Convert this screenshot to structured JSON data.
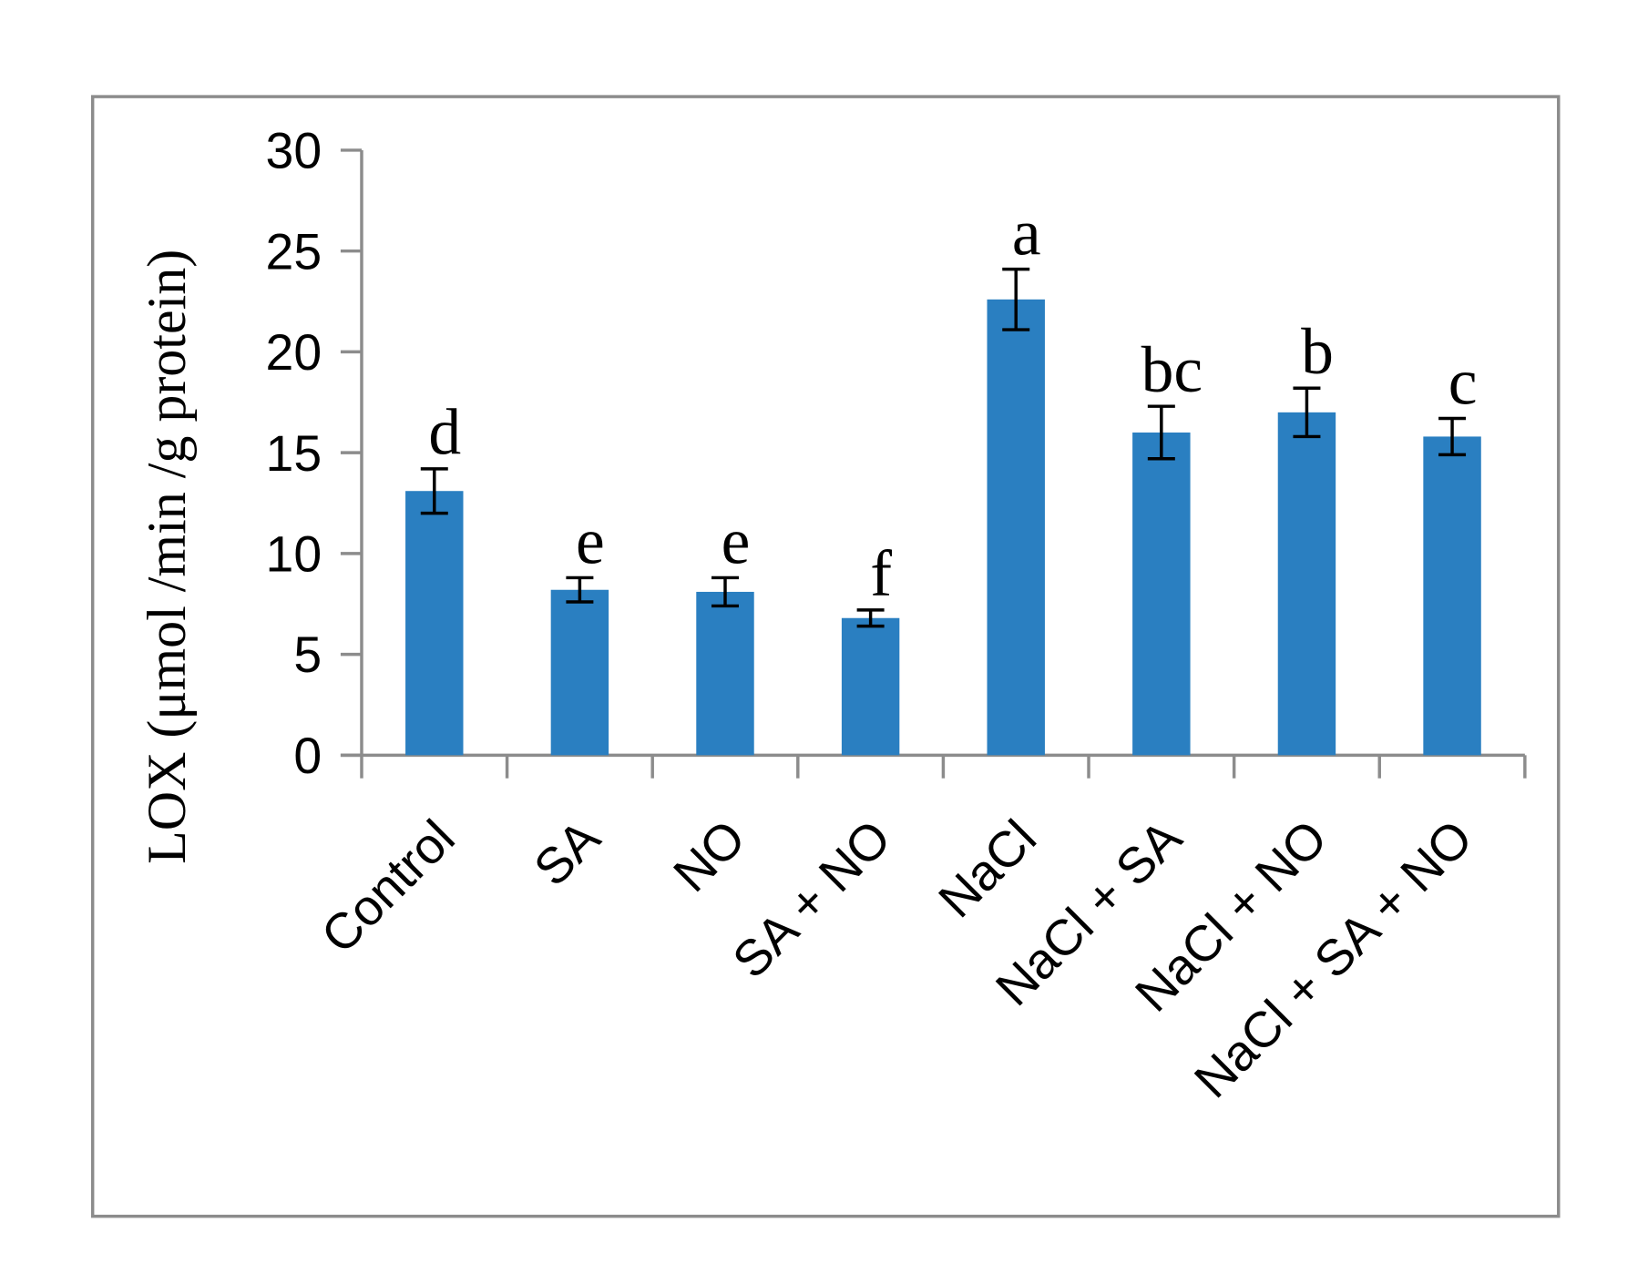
{
  "chart_data": {
    "type": "bar",
    "y_label": "LOX (μmol /min /g protein)",
    "categories": [
      "Control",
      "SA",
      "NO",
      "SA + NO",
      "NaCl",
      "NaCl + SA",
      "NaCl + NO",
      "NaCl + SA + NO"
    ],
    "values": [
      13.1,
      8.2,
      8.1,
      6.8,
      22.6,
      16.0,
      17.0,
      15.8
    ],
    "errors": [
      1.1,
      0.6,
      0.7,
      0.4,
      1.5,
      1.3,
      1.2,
      0.9
    ],
    "significance_letters": [
      "d",
      "e",
      "e",
      "f",
      "a",
      "bc",
      "b",
      "c"
    ],
    "color": "#2a7fc1",
    "ylim": [
      0,
      30
    ],
    "yticks": [
      0,
      5,
      10,
      15,
      20,
      25,
      30
    ],
    "grid": false
  }
}
